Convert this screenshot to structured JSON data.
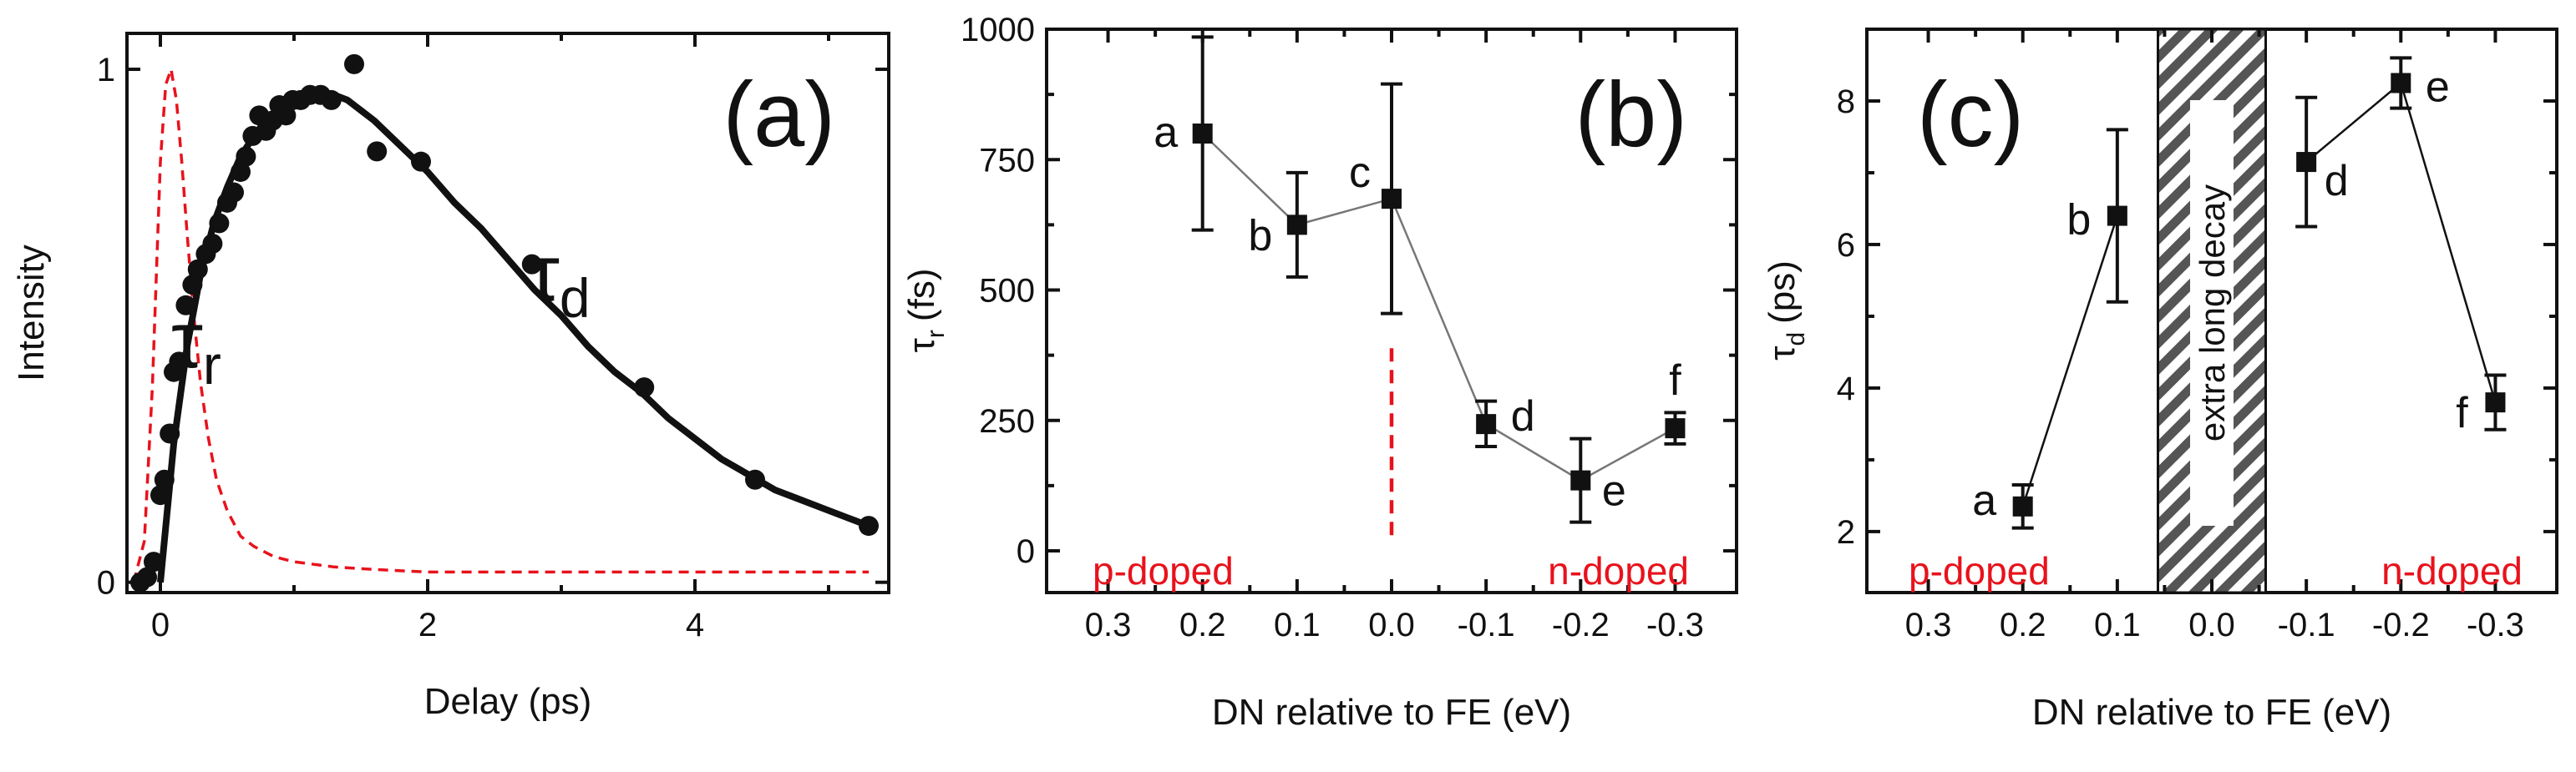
{
  "colors": {
    "ink": "#111111",
    "red": "#e8121c",
    "hatch": "#555555",
    "connector": "#777777"
  },
  "chart_data": [
    {
      "panel": "a",
      "type": "scatter",
      "panel_label": "(a)",
      "xlabel": "Delay (ps)",
      "ylabel": "Intensity",
      "xlim": [
        -0.25,
        5.45
      ],
      "ylim": [
        -0.02,
        1.07
      ],
      "xticks": [
        0,
        2,
        4
      ],
      "yticks": [
        0,
        1
      ],
      "tau_r": {
        "symbol": "τ",
        "sub": "r"
      },
      "tau_d": {
        "symbol": "τ",
        "sub": "d"
      },
      "points": {
        "x": [
          -0.15,
          -0.1,
          -0.05,
          0.0,
          0.03,
          0.07,
          0.1,
          0.14,
          0.19,
          0.24,
          0.28,
          0.34,
          0.39,
          0.44,
          0.5,
          0.55,
          0.6,
          0.64,
          0.69,
          0.74,
          0.79,
          0.84,
          0.89,
          0.94,
          0.99,
          1.05,
          1.12,
          1.2,
          1.28,
          1.45,
          1.62,
          1.95,
          2.78,
          3.62,
          4.45,
          5.3
        ],
        "y": [
          0.0,
          0.01,
          0.04,
          0.17,
          0.2,
          0.29,
          0.41,
          0.43,
          0.54,
          0.58,
          0.61,
          0.64,
          0.66,
          0.7,
          0.74,
          0.76,
          0.8,
          0.83,
          0.87,
          0.91,
          0.88,
          0.9,
          0.93,
          0.91,
          0.94,
          0.94,
          0.95,
          0.95,
          0.94,
          1.01,
          0.84,
          0.82,
          0.62,
          0.38,
          0.2,
          0.11
        ]
      },
      "fit_curve": {
        "x": [
          0.0,
          0.1,
          0.2,
          0.3,
          0.4,
          0.5,
          0.6,
          0.7,
          0.8,
          0.9,
          1.0,
          1.1,
          1.2,
          1.3,
          1.4,
          1.5,
          1.6,
          1.8,
          2.0,
          2.2,
          2.4,
          2.6,
          2.8,
          3.0,
          3.2,
          3.4,
          3.6,
          3.8,
          4.0,
          4.2,
          4.4,
          4.6,
          4.8,
          5.0,
          5.2,
          5.3
        ],
        "y": [
          0.0,
          0.27,
          0.46,
          0.6,
          0.7,
          0.77,
          0.83,
          0.87,
          0.9,
          0.93,
          0.94,
          0.95,
          0.95,
          0.95,
          0.94,
          0.92,
          0.9,
          0.85,
          0.8,
          0.74,
          0.69,
          0.63,
          0.57,
          0.52,
          0.46,
          0.41,
          0.37,
          0.32,
          0.28,
          0.24,
          0.21,
          0.18,
          0.16,
          0.14,
          0.12,
          0.11
        ]
      },
      "pulse_curve": {
        "x": [
          -0.2,
          -0.12,
          -0.06,
          0.0,
          0.04,
          0.08,
          0.12,
          0.16,
          0.2,
          0.25,
          0.3,
          0.36,
          0.42,
          0.5,
          0.6,
          0.7,
          0.85,
          1.0,
          1.3,
          1.6,
          2.0,
          3.0,
          4.0,
          5.0,
          5.3
        ],
        "y": [
          0.0,
          0.08,
          0.38,
          0.82,
          0.97,
          1.0,
          0.94,
          0.82,
          0.68,
          0.52,
          0.39,
          0.28,
          0.2,
          0.14,
          0.09,
          0.07,
          0.05,
          0.04,
          0.03,
          0.025,
          0.02,
          0.02,
          0.02,
          0.02,
          0.02
        ]
      }
    },
    {
      "panel": "b",
      "type": "scatter",
      "panel_label": "(b)",
      "xlabel": "DN relative to FE (eV)",
      "ylabel_symbol": "τ",
      "ylabel_sub": "r",
      "ylabel_unit": "(fs)",
      "xlim": [
        0.365,
        -0.365
      ],
      "ylim": [
        -80,
        1000
      ],
      "xticks": [
        "0.3",
        "0.2",
        "0.1",
        "0.0",
        "-0.1",
        "-0.2",
        "-0.3"
      ],
      "xtick_values": [
        0.3,
        0.2,
        0.1,
        0.0,
        -0.1,
        -0.2,
        -0.3
      ],
      "yticks": [
        0,
        250,
        500,
        750,
        1000
      ],
      "points": [
        {
          "label": "a",
          "x": 0.2,
          "y": 800,
          "err_low": 615,
          "err_high": 985
        },
        {
          "label": "b",
          "x": 0.1,
          "y": 625,
          "err_low": 525,
          "err_high": 725
        },
        {
          "label": "c",
          "x": 0.0,
          "y": 675,
          "err_low": 455,
          "err_high": 895
        },
        {
          "label": "d",
          "x": -0.1,
          "y": 243,
          "err_low": 200,
          "err_high": 287
        },
        {
          "label": "e",
          "x": -0.2,
          "y": 135,
          "err_low": 55,
          "err_high": 215
        },
        {
          "label": "f",
          "x": -0.3,
          "y": 235,
          "err_low": 205,
          "err_high": 265
        }
      ],
      "divider_x": 0.0,
      "divider_y": [
        30,
        390
      ],
      "region_left": "p-doped",
      "region_right": "n-doped"
    },
    {
      "panel": "c",
      "type": "scatter",
      "panel_label": "(c)",
      "xlabel": "DN relative to FE (eV)",
      "ylabel_symbol": "τ",
      "ylabel_sub": "d",
      "ylabel_unit": "(ps)",
      "xlim": [
        0.365,
        -0.365
      ],
      "ylim": [
        1.15,
        9.0
      ],
      "xticks": [
        "0.3",
        "0.2",
        "0.1",
        "0.0",
        "-0.1",
        "-0.2",
        "-0.3"
      ],
      "xtick_values": [
        0.3,
        0.2,
        0.1,
        0.0,
        -0.1,
        -0.2,
        -0.3
      ],
      "yticks": [
        2,
        4,
        6,
        8
      ],
      "segments": [
        [
          {
            "label": "a",
            "x": 0.2,
            "y": 2.35,
            "err_low": 2.05,
            "err_high": 2.65
          },
          {
            "label": "b",
            "x": 0.1,
            "y": 6.4,
            "err_low": 5.2,
            "err_high": 7.6
          }
        ],
        [
          {
            "label": "d",
            "x": -0.1,
            "y": 7.15,
            "err_low": 6.25,
            "err_high": 8.05
          },
          {
            "label": "e",
            "x": -0.2,
            "y": 8.25,
            "err_low": 7.9,
            "err_high": 8.6
          },
          {
            "label": "f",
            "x": -0.3,
            "y": 3.8,
            "err_low": 3.42,
            "err_high": 4.18
          }
        ]
      ],
      "hatched_band": {
        "x_from": 0.057,
        "x_to": -0.057,
        "label": "extra long decay"
      },
      "region_left": "p-doped",
      "region_right": "n-doped"
    }
  ]
}
